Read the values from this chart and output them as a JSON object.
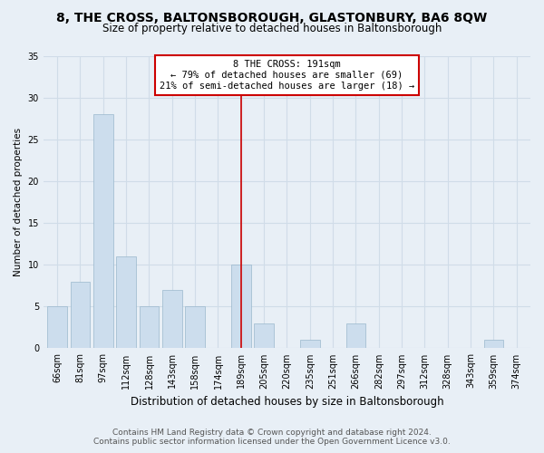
{
  "title": "8, THE CROSS, BALTONSBOROUGH, GLASTONBURY, BA6 8QW",
  "subtitle": "Size of property relative to detached houses in Baltonsborough",
  "xlabel": "Distribution of detached houses by size in Baltonsborough",
  "ylabel": "Number of detached properties",
  "categories": [
    "66sqm",
    "81sqm",
    "97sqm",
    "112sqm",
    "128sqm",
    "143sqm",
    "158sqm",
    "174sqm",
    "189sqm",
    "205sqm",
    "220sqm",
    "235sqm",
    "251sqm",
    "266sqm",
    "282sqm",
    "297sqm",
    "312sqm",
    "328sqm",
    "343sqm",
    "359sqm",
    "374sqm"
  ],
  "values": [
    5,
    8,
    28,
    11,
    5,
    7,
    5,
    0,
    10,
    3,
    0,
    1,
    0,
    3,
    0,
    0,
    0,
    0,
    0,
    1,
    0
  ],
  "bar_color": "#ccdded",
  "bar_edge_color": "#9ab8cc",
  "vline_x_index": 8,
  "vline_color": "#cc0000",
  "annotation_title": "8 THE CROSS: 191sqm",
  "annotation_line1": "← 79% of detached houses are smaller (69)",
  "annotation_line2": "21% of semi-detached houses are larger (18) →",
  "annotation_box_color": "#ffffff",
  "annotation_box_edge": "#cc0000",
  "ylim": [
    0,
    35
  ],
  "yticks": [
    0,
    5,
    10,
    15,
    20,
    25,
    30,
    35
  ],
  "grid_color": "#d0dce8",
  "background_color": "#e8eff6",
  "footer_line1": "Contains HM Land Registry data © Crown copyright and database right 2024.",
  "footer_line2": "Contains public sector information licensed under the Open Government Licence v3.0.",
  "title_fontsize": 10,
  "subtitle_fontsize": 8.5,
  "xlabel_fontsize": 8.5,
  "ylabel_fontsize": 7.5,
  "tick_fontsize": 7,
  "annotation_fontsize": 7.5,
  "footer_fontsize": 6.5
}
